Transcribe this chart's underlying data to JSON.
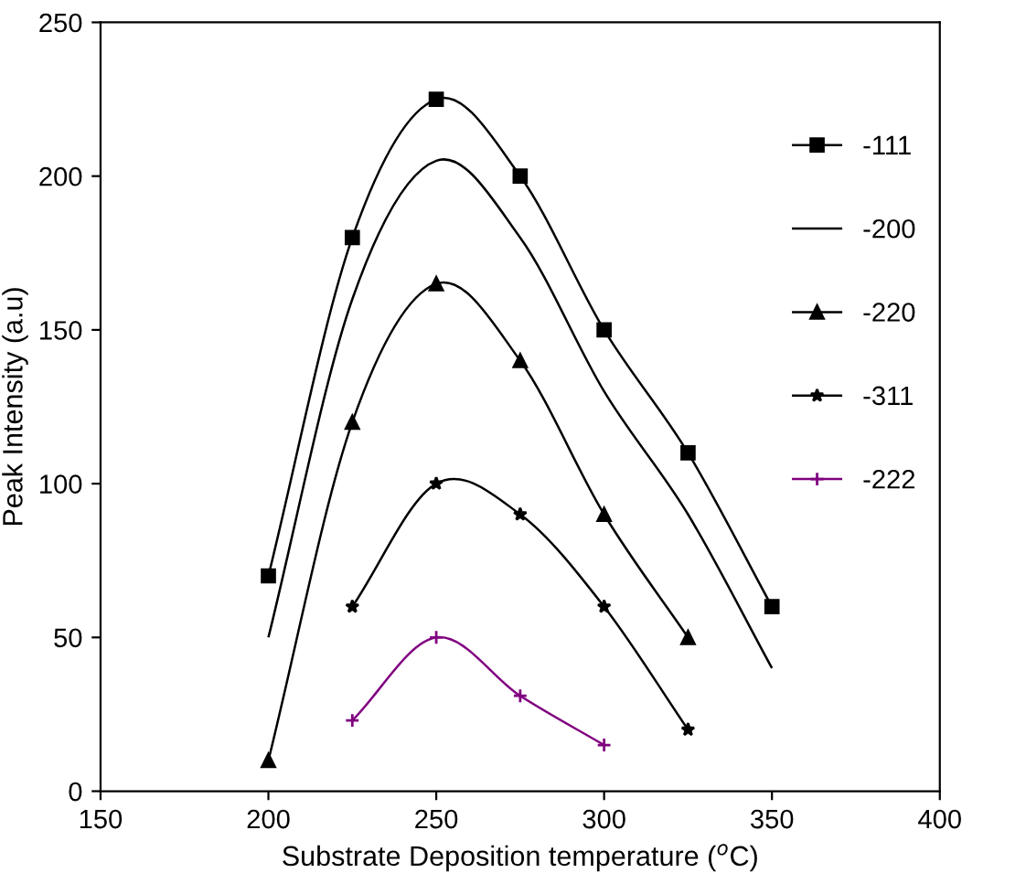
{
  "chart_data": {
    "type": "line",
    "xlabel": "Substrate Deposition temperature ($^{o}$C)",
    "ylabel": "Peak Intensity (a.u)",
    "xlim": [
      150,
      400
    ],
    "xticks": [
      150,
      200,
      250,
      300,
      350,
      400
    ],
    "ylim": [
      0,
      250
    ],
    "yticks": [
      0,
      50,
      100,
      150,
      200,
      250
    ],
    "grid": false,
    "legend": "right",
    "line_style": "solid",
    "series": [
      {
        "name": "-111",
        "color": "#000000",
        "marker": "square",
        "x": [
          200,
          225,
          250,
          275,
          300,
          325,
          350
        ],
        "values": [
          70,
          180,
          225,
          200,
          150,
          110,
          60
        ]
      },
      {
        "name": "-200",
        "color": "#000000",
        "marker": "none",
        "x": [
          200,
          225,
          250,
          275,
          300,
          325,
          350
        ],
        "values": [
          50,
          160,
          205,
          180,
          130,
          90,
          40
        ]
      },
      {
        "name": "-220",
        "color": "#000000",
        "marker": "triangle",
        "x": [
          200,
          225,
          250,
          275,
          300,
          325
        ],
        "values": [
          10,
          120,
          165,
          140,
          90,
          50
        ]
      },
      {
        "name": "-311",
        "color": "#000000",
        "marker": "star",
        "x": [
          225,
          250,
          275,
          300,
          325
        ],
        "values": [
          60,
          100,
          90,
          60,
          20
        ]
      },
      {
        "name": "-222",
        "color": "#800080",
        "marker": "cross",
        "x": [
          225,
          250,
          275,
          300
        ],
        "values": [
          23,
          50,
          31,
          15
        ]
      }
    ]
  }
}
